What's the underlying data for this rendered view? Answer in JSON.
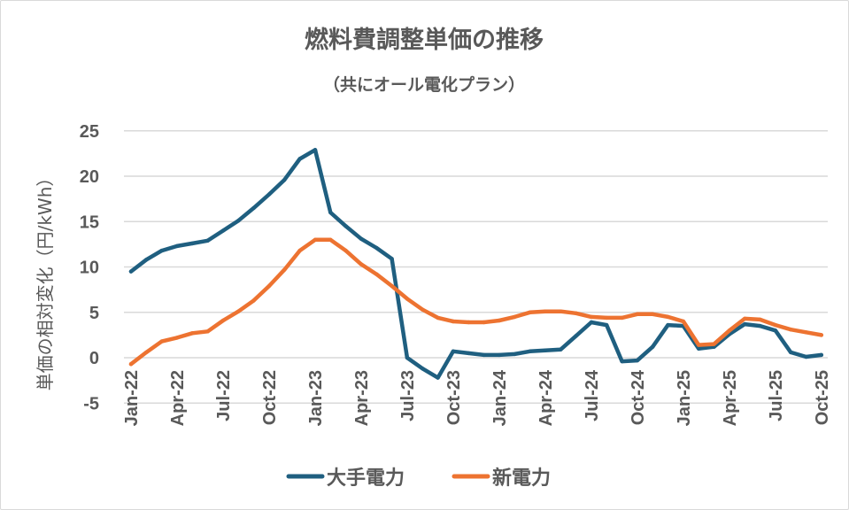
{
  "chart_data": {
    "type": "line",
    "title": "燃料費調整単価の推移",
    "subtitle": "（共にオール電化プラン）",
    "xlabel": "",
    "ylabel": "単価の相対変化（円/kWh）",
    "ylim": [
      -5,
      25
    ],
    "yticks": [
      "25",
      "20",
      "15",
      "10",
      "5",
      "0",
      "-5"
    ],
    "ytick_values": [
      25,
      20,
      15,
      10,
      5,
      0,
      -5
    ],
    "grid": true,
    "legend_position": "bottom",
    "x": [
      "Jan-22",
      "Feb-22",
      "Mar-22",
      "Apr-22",
      "May-22",
      "Jun-22",
      "Jul-22",
      "Aug-22",
      "Sep-22",
      "Oct-22",
      "Nov-22",
      "Dec-22",
      "Jan-23",
      "Feb-23",
      "Mar-23",
      "Apr-23",
      "May-23",
      "Jun-23",
      "Jul-23",
      "Aug-23",
      "Sep-23",
      "Oct-23",
      "Nov-23",
      "Dec-23",
      "Jan-24",
      "Feb-24",
      "Mar-24",
      "Apr-24",
      "May-24",
      "Jun-24",
      "Jul-24",
      "Aug-24",
      "Sep-24",
      "Oct-24",
      "Nov-24",
      "Dec-24",
      "Jan-25",
      "Feb-25",
      "Mar-25",
      "Apr-25",
      "May-25",
      "Jun-25",
      "Jul-25",
      "Aug-25",
      "Sep-25",
      "Oct-25"
    ],
    "xtick_labels": [
      "Jan-22",
      "Apr-22",
      "Jul-22",
      "Oct-22",
      "Jan-23",
      "Apr-23",
      "Jul-23",
      "Oct-23",
      "Jan-24",
      "Apr-24",
      "Jul-24",
      "Oct-24",
      "Jan-25",
      "Apr-25",
      "Jul-25",
      "Oct-25"
    ],
    "series": [
      {
        "name": "大手電力",
        "color": "#1f5f80",
        "values": [
          9.5,
          10.8,
          11.8,
          12.3,
          12.6,
          12.9,
          14.0,
          15.1,
          16.5,
          18.0,
          19.6,
          21.9,
          22.9,
          16.0,
          14.5,
          13.1,
          12.1,
          10.9,
          0.0,
          -1.2,
          -2.2,
          0.7,
          0.5,
          0.3,
          0.3,
          0.4,
          0.7,
          0.8,
          0.9,
          2.4,
          3.9,
          3.6,
          -0.4,
          -0.3,
          1.2,
          3.6,
          3.5,
          1.0,
          1.2,
          2.6,
          3.7,
          3.5,
          3.0,
          0.6,
          0.1,
          0.3
        ]
      },
      {
        "name": "新電力",
        "color": "#ed7331",
        "values": [
          -0.7,
          0.6,
          1.8,
          2.2,
          2.7,
          2.9,
          4.1,
          5.1,
          6.3,
          7.9,
          9.7,
          11.8,
          13.0,
          13.0,
          11.8,
          10.3,
          9.2,
          7.9,
          6.5,
          5.3,
          4.4,
          4.0,
          3.9,
          3.9,
          4.1,
          4.5,
          5.0,
          5.1,
          5.1,
          4.9,
          4.5,
          4.4,
          4.4,
          4.8,
          4.8,
          4.5,
          4.0,
          1.4,
          1.5,
          3.0,
          4.3,
          4.2,
          3.6,
          3.1,
          2.8,
          2.5
        ]
      }
    ]
  },
  "colors": {
    "text": "#595959",
    "grid": "#d9d9d9"
  }
}
